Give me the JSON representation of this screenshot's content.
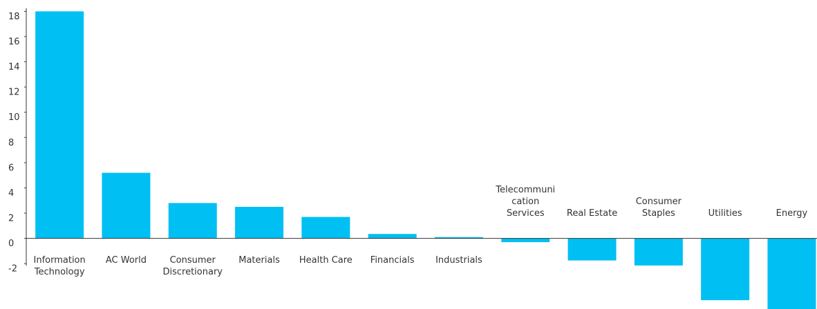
{
  "chart_data": {
    "type": "bar",
    "categories": [
      "Information Technology",
      "AC World",
      "Consumer Discretionary",
      "Materials",
      "Health Care",
      "Financials",
      "Industrials",
      "Telecommunication Services",
      "Real Estate",
      "Consumer Staples",
      "Utilities",
      "Energy"
    ],
    "values": [
      18.0,
      5.2,
      2.8,
      2.5,
      1.7,
      0.35,
      0.1,
      -0.3,
      -1.75,
      -2.15,
      -4.9,
      -5.9
    ],
    "color": "#00bff3",
    "ylim": [
      -5.6,
      18.9
    ],
    "yticks": [
      -2,
      0,
      2,
      4,
      6,
      8,
      10,
      12,
      14,
      16,
      18
    ]
  }
}
